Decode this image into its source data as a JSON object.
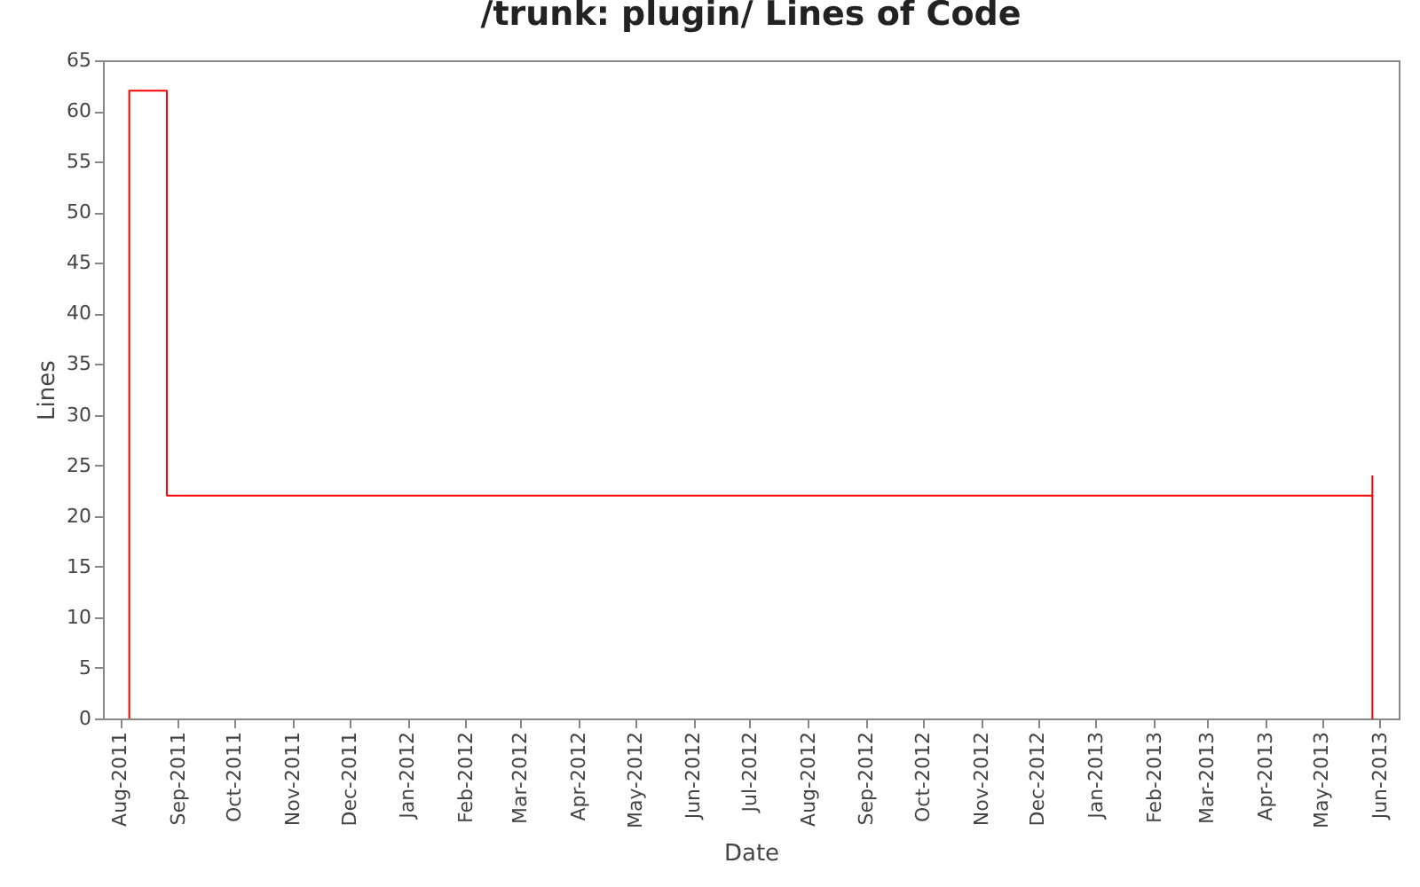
{
  "chart_data": {
    "type": "step",
    "title": "/trunk: plugin/ Lines of Code",
    "xlabel": "Date",
    "ylabel": "Lines",
    "x": [
      "2011-08-06",
      "2011-08-06",
      "2011-08-26",
      "2013-05-28",
      "2013-05-28"
    ],
    "series": [
      {
        "color": "#ff0000",
        "values": [
          0,
          62,
          22,
          0,
          24
        ]
      }
    ],
    "xlim": [
      "2011-07-23",
      "2013-06-11"
    ],
    "xticks": [
      {
        "value": "2011-08-01",
        "label": "Aug-2011"
      },
      {
        "value": "2011-09-01",
        "label": "Sep-2011"
      },
      {
        "value": "2011-10-01",
        "label": "Oct-2011"
      },
      {
        "value": "2011-11-01",
        "label": "Nov-2011"
      },
      {
        "value": "2011-12-01",
        "label": "Dec-2011"
      },
      {
        "value": "2012-01-01",
        "label": "Jan-2012"
      },
      {
        "value": "2012-02-01",
        "label": "Feb-2012"
      },
      {
        "value": "2012-03-01",
        "label": "Mar-2012"
      },
      {
        "value": "2012-04-01",
        "label": "Apr-2012"
      },
      {
        "value": "2012-05-01",
        "label": "May-2012"
      },
      {
        "value": "2012-06-01",
        "label": "Jun-2012"
      },
      {
        "value": "2012-07-01",
        "label": "Jul-2012"
      },
      {
        "value": "2012-08-01",
        "label": "Aug-2012"
      },
      {
        "value": "2012-09-01",
        "label": "Sep-2012"
      },
      {
        "value": "2012-10-01",
        "label": "Oct-2012"
      },
      {
        "value": "2012-11-01",
        "label": "Nov-2012"
      },
      {
        "value": "2012-12-01",
        "label": "Dec-2012"
      },
      {
        "value": "2013-01-01",
        "label": "Jan-2013"
      },
      {
        "value": "2013-02-01",
        "label": "Feb-2013"
      },
      {
        "value": "2013-03-01",
        "label": "Mar-2013"
      },
      {
        "value": "2013-04-01",
        "label": "Apr-2013"
      },
      {
        "value": "2013-05-01",
        "label": "May-2013"
      },
      {
        "value": "2013-06-01",
        "label": "Jun-2013"
      }
    ],
    "ylim": [
      0,
      65
    ],
    "yticks": [
      0,
      5,
      10,
      15,
      20,
      25,
      30,
      35,
      40,
      45,
      50,
      55,
      60,
      65
    ],
    "grid": false
  }
}
